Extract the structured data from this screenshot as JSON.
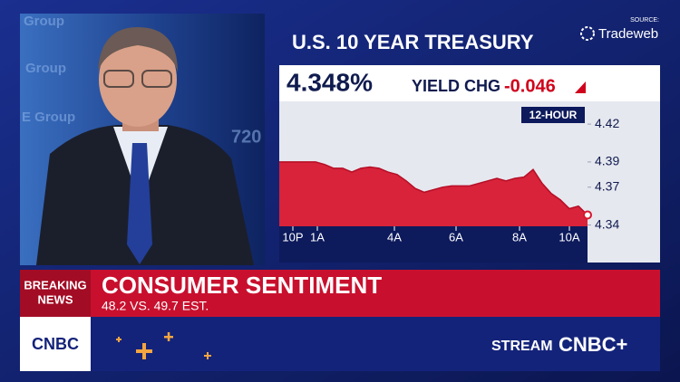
{
  "source_label": "SOURCE:",
  "source_name": "Tradeweb",
  "background_texts": [
    "Group",
    "Group",
    "E Group",
    "720"
  ],
  "quote": {
    "price": "4.348%",
    "change_label": "YIELD CHG",
    "change": "-0.046"
  },
  "chart_data": {
    "type": "area",
    "title": "U.S. 10 YEAR TREASURY",
    "period": "12-HOUR",
    "x": [
      0,
      1,
      2,
      3,
      4,
      5,
      6,
      7,
      8,
      9,
      10,
      11,
      12,
      13,
      14,
      15,
      16,
      17,
      18,
      19,
      20,
      21,
      22,
      23,
      24,
      25,
      26,
      27,
      28,
      29,
      30,
      31,
      32,
      33,
      34
    ],
    "xlim": [
      0,
      34
    ],
    "xticks": [
      {
        "value": 1.5,
        "label": "10P"
      },
      {
        "value": 4.2,
        "label": "1A"
      },
      {
        "value": 12.7,
        "label": "4A"
      },
      {
        "value": 19.5,
        "label": "6A"
      },
      {
        "value": 26.5,
        "label": "8A"
      },
      {
        "value": 32,
        "label": "10A"
      }
    ],
    "ylim": [
      4.339,
      4.438
    ],
    "yticks": [
      4.42,
      4.39,
      4.37,
      4.34
    ],
    "series": [
      {
        "name": "U.S. 10 YEAR TREASURY",
        "color": "#d7182f",
        "values": [
          4.39,
          4.39,
          4.39,
          4.39,
          4.39,
          4.388,
          4.385,
          4.385,
          4.382,
          4.385,
          4.386,
          4.385,
          4.382,
          4.38,
          4.375,
          4.369,
          4.366,
          4.368,
          4.37,
          4.371,
          4.371,
          4.371,
          4.373,
          4.375,
          4.377,
          4.375,
          4.377,
          4.378,
          4.384,
          4.373,
          4.365,
          4.36,
          4.353,
          4.355,
          4.348
        ]
      }
    ]
  },
  "banner": {
    "tag_line1": "BREAKING",
    "tag_line2": "NEWS",
    "headline": "CONSUMER SENTIMENT",
    "subline": "48.2 VS. 49.7 EST."
  },
  "footer": {
    "logo": "CNBC",
    "stream": "STREAM",
    "stream_brand": "CNBC+"
  }
}
